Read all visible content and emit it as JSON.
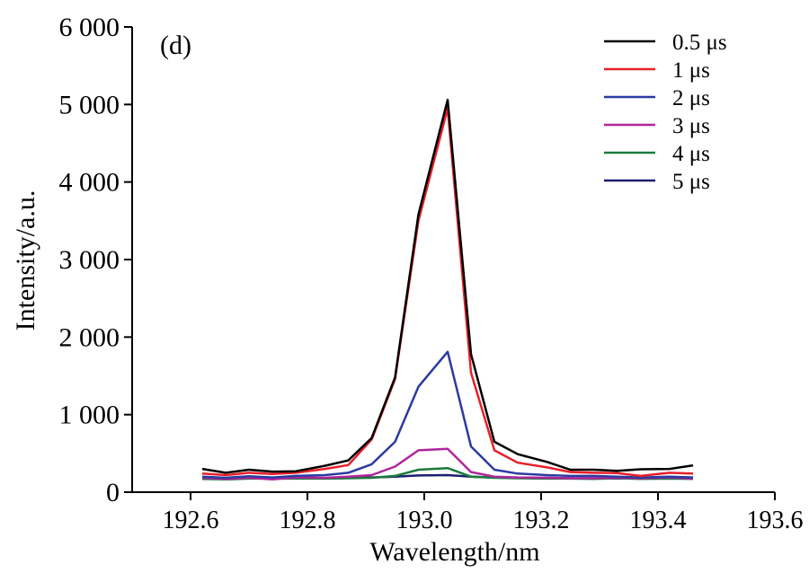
{
  "chart_data": {
    "type": "line",
    "panel_label": "(d)",
    "xlabel": "Wavelength/nm",
    "ylabel": "Intensity/a.u.",
    "xlim": [
      192.5,
      193.6
    ],
    "ylim": [
      0,
      6000
    ],
    "xticks": [
      192.6,
      192.8,
      193.0,
      193.2,
      193.4,
      193.6
    ],
    "xtick_labels": [
      "192.6",
      "192.8",
      "193.0",
      "193.2",
      "193.4",
      "193.6"
    ],
    "yticks": [
      0,
      1000,
      2000,
      3000,
      4000,
      5000,
      6000
    ],
    "ytick_labels": [
      "0",
      "1 000",
      "2 000",
      "3 000",
      "4 000",
      "5 000",
      "6 000"
    ],
    "grid": false,
    "legend_position": "top-right",
    "x": [
      192.62,
      192.66,
      192.7,
      192.74,
      192.78,
      192.83,
      192.87,
      192.91,
      192.95,
      192.99,
      193.04,
      193.08,
      193.12,
      193.16,
      193.21,
      193.25,
      193.29,
      193.33,
      193.37,
      193.42,
      193.46
    ],
    "series": [
      {
        "name": "0.5 μs",
        "color": "#000000",
        "values": [
          300,
          250,
          290,
          265,
          270,
          340,
          410,
          700,
          1480,
          3580,
          5060,
          1780,
          650,
          490,
          390,
          290,
          290,
          275,
          295,
          300,
          345
        ]
      },
      {
        "name": "1 μs",
        "color": "#e8202a",
        "values": [
          240,
          220,
          250,
          235,
          250,
          300,
          350,
          680,
          1460,
          3500,
          4950,
          1540,
          540,
          380,
          320,
          260,
          250,
          245,
          210,
          250,
          240
        ]
      },
      {
        "name": "2 μs",
        "color": "#2b3ba0",
        "values": [
          200,
          185,
          205,
          190,
          210,
          220,
          250,
          360,
          650,
          1360,
          1810,
          590,
          290,
          240,
          220,
          210,
          210,
          200,
          190,
          200,
          190
        ]
      },
      {
        "name": "3 μs",
        "color": "#b0259b",
        "values": [
          185,
          170,
          185,
          165,
          190,
          185,
          200,
          220,
          330,
          540,
          560,
          260,
          200,
          190,
          185,
          180,
          180,
          185,
          180,
          190,
          175
        ]
      },
      {
        "name": "4 μs",
        "color": "#1b7a3c",
        "values": [
          170,
          165,
          175,
          175,
          175,
          175,
          180,
          185,
          210,
          290,
          310,
          200,
          185,
          180,
          175,
          175,
          170,
          180,
          170,
          175,
          170
        ]
      },
      {
        "name": "5 μs",
        "color": "#1a1f70",
        "values": [
          180,
          175,
          185,
          180,
          190,
          180,
          185,
          190,
          200,
          215,
          220,
          200,
          190,
          185,
          185,
          180,
          180,
          175,
          185,
          180,
          185
        ]
      }
    ]
  }
}
